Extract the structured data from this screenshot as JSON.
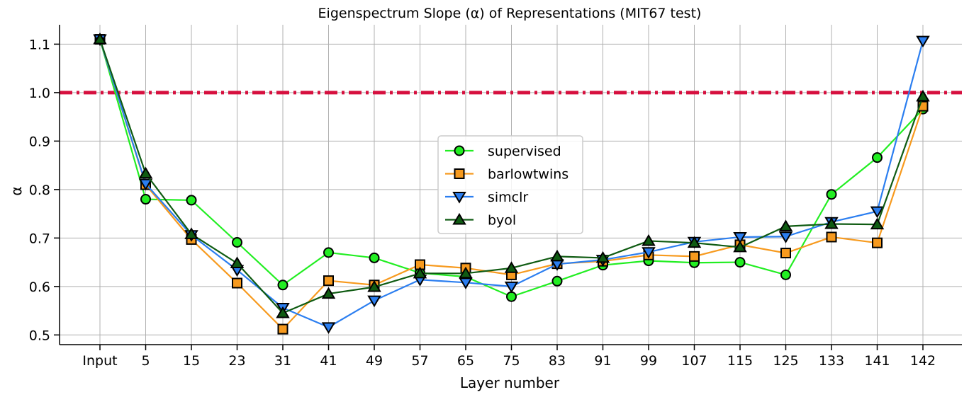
{
  "chart_data": {
    "type": "line",
    "title": "Eigenspectrum Slope (α) of Representations (MIT67 test)",
    "xlabel": "Layer number",
    "ylabel": "α",
    "categories": [
      "Input",
      "5",
      "15",
      "23",
      "31",
      "41",
      "49",
      "57",
      "65",
      "75",
      "83",
      "91",
      "99",
      "107",
      "115",
      "125",
      "133",
      "141",
      "142"
    ],
    "ylim": [
      0.48,
      1.14
    ],
    "yticks": [
      0.5,
      0.6,
      0.7,
      0.8,
      0.9,
      1.0,
      1.1
    ],
    "ytick_labels": [
      "0.5",
      "0.6",
      "0.7",
      "0.8",
      "0.9",
      "1.0",
      "1.1"
    ],
    "grid": true,
    "legend_position": "center",
    "reference_line": {
      "y": 1.0,
      "color": "#d6103f",
      "style": "dash-dot"
    },
    "series": [
      {
        "name": "supervised",
        "color": "#22ee22",
        "marker": "circle",
        "values": [
          1.11,
          0.78,
          0.778,
          0.691,
          0.603,
          0.67,
          0.659,
          0.628,
          0.62,
          0.579,
          0.611,
          0.644,
          0.653,
          0.649,
          0.65,
          0.624,
          0.79,
          0.866,
          0.966
        ]
      },
      {
        "name": "barlowtwins",
        "color": "#f79a1e",
        "marker": "square",
        "values": [
          1.11,
          0.81,
          0.697,
          0.607,
          0.512,
          0.612,
          0.603,
          0.645,
          0.638,
          0.624,
          0.647,
          0.652,
          0.665,
          0.662,
          0.686,
          0.669,
          0.702,
          0.69,
          0.972
        ]
      },
      {
        "name": "simclr",
        "color": "#2b7ef0",
        "marker": "triangle-down",
        "values": [
          1.11,
          0.812,
          0.706,
          0.634,
          0.556,
          0.516,
          0.571,
          0.614,
          0.608,
          0.6,
          0.646,
          0.655,
          0.671,
          0.692,
          0.702,
          0.703,
          0.733,
          0.755,
          1.107
        ]
      },
      {
        "name": "byol",
        "color": "#0f5b12",
        "marker": "triangle-up",
        "values": [
          1.11,
          0.833,
          0.708,
          0.648,
          0.545,
          0.585,
          0.599,
          0.627,
          0.627,
          0.638,
          0.662,
          0.659,
          0.694,
          0.69,
          0.681,
          0.724,
          0.729,
          0.728,
          0.992
        ]
      }
    ]
  }
}
